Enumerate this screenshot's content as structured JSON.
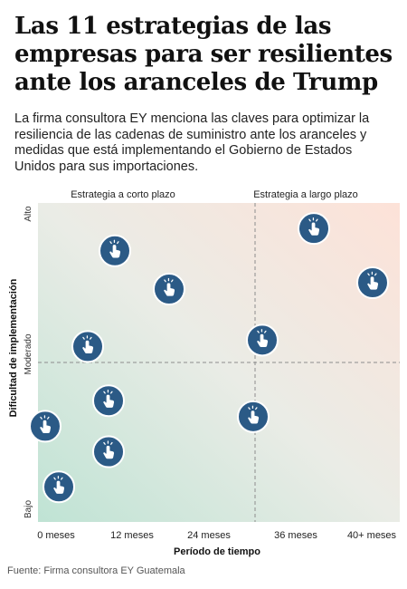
{
  "title": "Las 11 estrategias de las empresas para ser resilientes ante los aranceles de Trump",
  "subtitle": "La firma consultora EY menciona las claves para optimizar la resiliencia de las cadenas de suministro ante los aranceles y medidas que está implementando el Gobierno de Estados Unidos para sus importaciones.",
  "source": "Fuente: Firma consultora EY Guatemala",
  "chart_data": {
    "type": "scatter",
    "xlabel": "Período de tiempo",
    "ylabel": "Dificultad de implementación",
    "x_tick_labels": [
      "0 meses",
      "12 meses",
      "24 meses",
      "36 meses",
      "40+ meses"
    ],
    "x_ticks": [
      0,
      12,
      24,
      36,
      40
    ],
    "y_tick_labels": [
      "Bajo",
      "Moderado",
      "Alto"
    ],
    "quadrant_labels": [
      "Estrategia a corto plazo",
      "Estrategia a largo plazo"
    ],
    "xlim": [
      0,
      40
    ],
    "ylim": [
      0,
      10
    ],
    "divider_x": 24,
    "divider_y": 5,
    "marker_icon": "hand-pointer-icon",
    "colors": {
      "marker": "#2b5a86",
      "bg_top_right": "#fde2d8",
      "bg_bottom_left": "#bfe3d4"
    },
    "points": [
      {
        "x": 30.5,
        "y": 9.2
      },
      {
        "x": 37.0,
        "y": 7.5
      },
      {
        "x": 8.5,
        "y": 8.5
      },
      {
        "x": 14.5,
        "y": 7.3
      },
      {
        "x": 24.8,
        "y": 5.7
      },
      {
        "x": 5.5,
        "y": 5.5
      },
      {
        "x": 7.8,
        "y": 3.8
      },
      {
        "x": 23.8,
        "y": 3.3
      },
      {
        "x": 0.8,
        "y": 3.0
      },
      {
        "x": 7.8,
        "y": 2.2
      },
      {
        "x": 2.3,
        "y": 1.1
      }
    ]
  }
}
